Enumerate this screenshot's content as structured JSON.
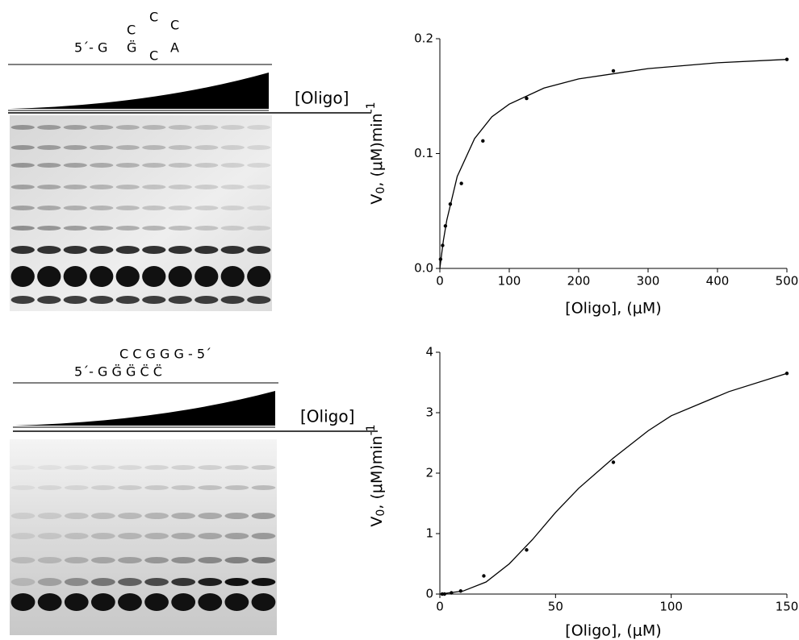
{
  "chart_data": [
    {
      "type": "scatter",
      "x_label": "[Oligo], (μM)",
      "y_label": {
        "text": "V",
        "sub": "0",
        "mid": ", (μM)min",
        "sup": "-1"
      },
      "annotations": {
        "oligo_label": "[Oligo]",
        "sequence": [
          "5´- G",
          "C",
          "G̈",
          "C",
          "C",
          "C",
          "A"
        ]
      },
      "xlim": [
        0,
        500
      ],
      "ylim": [
        0,
        0.2
      ],
      "xticks": [
        0,
        100,
        200,
        300,
        400,
        500
      ],
      "yticks": [
        {
          "value": 0,
          "label": "0.0"
        },
        {
          "value": 0.1,
          "label": "0.1"
        },
        {
          "value": 0.2,
          "label": "0.2"
        }
      ],
      "series": [
        {
          "color": "#000000",
          "style": "points",
          "x": [
            1,
            4,
            8,
            15,
            31,
            62,
            125,
            250,
            500
          ],
          "values": [
            0.008,
            0.02,
            0.037,
            0.056,
            0.074,
            0.111,
            0.148,
            0.172,
            0.182
          ]
        },
        {
          "color": "#000000",
          "style": "line",
          "x": [
            0,
            5,
            10,
            25,
            50,
            75,
            100,
            150,
            200,
            300,
            400,
            500
          ],
          "values": [
            0,
            0.024,
            0.042,
            0.08,
            0.113,
            0.132,
            0.143,
            0.157,
            0.165,
            0.174,
            0.179,
            0.182
          ]
        }
      ]
    },
    {
      "type": "scatter",
      "x_label": "[Oligo], (μM)",
      "y_label": {
        "text": "V",
        "sub": "0",
        "mid": ", (μM)min",
        "sup": "-1"
      },
      "annotations": {
        "oligo_label": "[Oligo]",
        "sequence": [
          "C C G G G - 5´",
          "5´- G G̈ G̈ C̈ C̈"
        ]
      },
      "xlim": [
        0,
        150
      ],
      "ylim": [
        0,
        4
      ],
      "xticks": [
        0,
        50,
        100,
        150
      ],
      "yticks": [
        0,
        1,
        2,
        3,
        4
      ],
      "series": [
        {
          "color": "#000000",
          "style": "points",
          "x": [
            1,
            2,
            5,
            9,
            19,
            37.5,
            75,
            150
          ],
          "values": [
            0,
            0,
            0.02,
            0.05,
            0.3,
            0.73,
            2.18,
            3.65
          ]
        },
        {
          "color": "#000000",
          "style": "line",
          "x": [
            0,
            10,
            20,
            30,
            40,
            50,
            60,
            75,
            90,
            100,
            125,
            150
          ],
          "values": [
            0,
            0.05,
            0.2,
            0.5,
            0.9,
            1.35,
            1.75,
            2.25,
            2.7,
            2.95,
            3.35,
            3.65
          ]
        }
      ]
    }
  ]
}
